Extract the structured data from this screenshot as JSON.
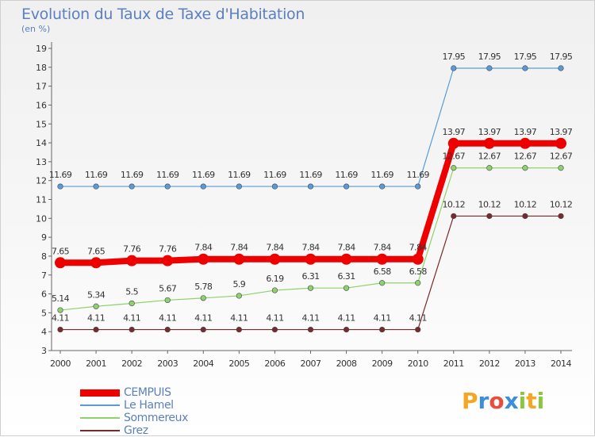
{
  "chart_data": {
    "type": "line",
    "title": "Evolution du Taux de Taxe d'Habitation",
    "subtitle": "(en %)",
    "x": [
      "2000",
      "2001",
      "2002",
      "2003",
      "2004",
      "2005",
      "2006",
      "2007",
      "2008",
      "2009",
      "2010",
      "2011",
      "2012",
      "2013",
      "2014"
    ],
    "ylim": [
      3,
      19
    ],
    "yticks": [
      3,
      4,
      5,
      6,
      7,
      8,
      9,
      10,
      11,
      12,
      13,
      14,
      15,
      16,
      17,
      18,
      19
    ],
    "grid": false,
    "legend_position": "bottom-left",
    "series": [
      {
        "name": "CEMPUIS",
        "color": "#ee0000",
        "values": [
          7.65,
          7.65,
          7.76,
          7.76,
          7.84,
          7.84,
          7.84,
          7.84,
          7.84,
          7.84,
          7.84,
          13.97,
          13.97,
          13.97,
          13.97
        ],
        "labels": [
          "7.65",
          "7.65",
          "7.76",
          "7.76",
          "7.84",
          "7.84",
          "7.84",
          "7.84",
          "7.84",
          "7.84",
          "7.84",
          "13.97",
          "13.97",
          "13.97",
          "13.97"
        ]
      },
      {
        "name": "Le Hamel",
        "color": "#5b9bd5",
        "values": [
          11.69,
          11.69,
          11.69,
          11.69,
          11.69,
          11.69,
          11.69,
          11.69,
          11.69,
          11.69,
          11.69,
          17.95,
          17.95,
          17.95,
          17.95
        ],
        "labels": [
          "11.69",
          "11.69",
          "11.69",
          "11.69",
          "11.69",
          "11.69",
          "11.69",
          "11.69",
          "11.69",
          "11.69",
          "11.69",
          "17.95",
          "17.95",
          "17.95",
          "17.95"
        ]
      },
      {
        "name": "Sommereux",
        "color": "#8fd16a",
        "values": [
          5.14,
          5.34,
          5.5,
          5.67,
          5.78,
          5.9,
          6.19,
          6.31,
          6.31,
          6.58,
          6.58,
          12.67,
          12.67,
          12.67,
          12.67
        ],
        "labels": [
          "5.14",
          "5.34",
          "5.5",
          "5.67",
          "5.78",
          "5.9",
          "6.19",
          "6.31",
          "6.31",
          "6.58",
          "6.58",
          "12.67",
          "12.67",
          "12.67",
          "12.67"
        ]
      },
      {
        "name": "Grez",
        "color": "#7a2a2a",
        "values": [
          4.11,
          4.11,
          4.11,
          4.11,
          4.11,
          4.11,
          4.11,
          4.11,
          4.11,
          4.11,
          4.11,
          10.12,
          10.12,
          10.12,
          10.12
        ],
        "labels": [
          "4.11",
          "4.11",
          "4.11",
          "4.11",
          "4.11",
          "4.11",
          "4.11",
          "4.11",
          "4.11",
          "4.11",
          "4.11",
          "10.12",
          "10.12",
          "10.12",
          "10.12"
        ]
      }
    ]
  },
  "logo": {
    "text": "Proxiti",
    "parts": [
      "P",
      "r",
      "o",
      "x",
      "i",
      "t",
      "i"
    ]
  }
}
